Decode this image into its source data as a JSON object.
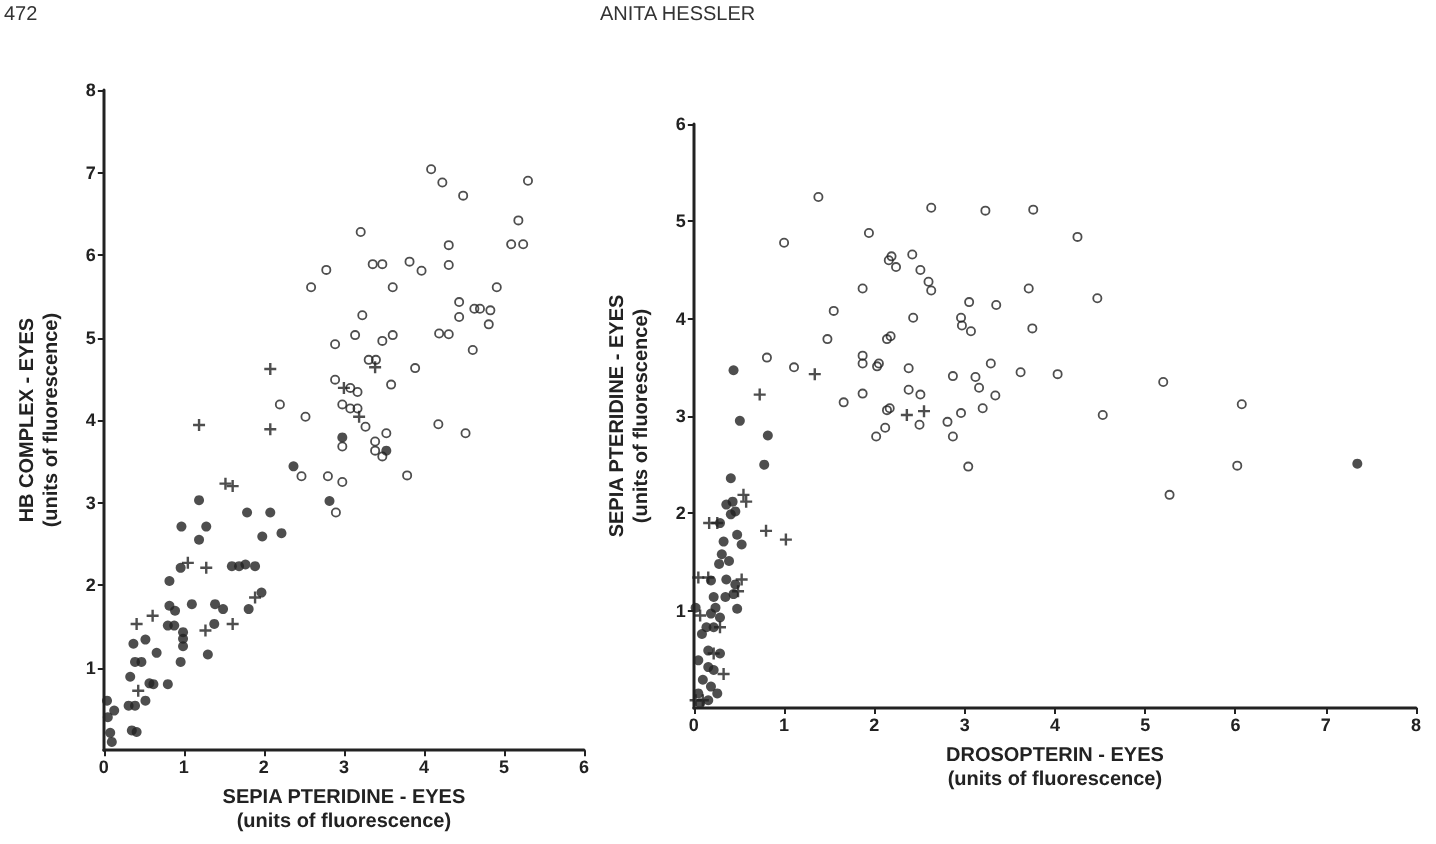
{
  "chart_data": [
    {
      "type": "scatter",
      "xlabel": "SEPIA PTERIDINE - EYES\n(units of fluorescence)",
      "ylabel": "HB COMPLEX - EYES\n(units of fluorescence)",
      "annotations": [
        "472",
        "ANITA HESSLER"
      ],
      "xlim": [
        0,
        6
      ],
      "ylim": [
        0,
        8
      ],
      "xticks": [
        0,
        1,
        2,
        3,
        4,
        5,
        6
      ],
      "yticks": [
        1,
        2,
        3,
        4,
        5,
        6,
        7,
        8
      ],
      "grid": false,
      "series": [
        {
          "color": "#222222",
          "marker": "circle",
          "x": [
            0.04,
            0.05,
            0.13,
            0.08,
            0.1,
            0.35,
            0.41,
            0.33,
            0.39,
            0.31,
            0.39,
            0.37,
            0.47,
            0.52,
            0.52,
            0.57,
            0.62,
            0.66,
            0.8,
            0.8,
            0.82,
            0.82,
            0.88,
            0.89,
            0.96,
            0.96,
            0.97,
            0.99,
            0.99,
            0.99,
            1.1,
            1.19,
            1.19,
            1.28,
            1.3,
            1.38,
            1.39,
            1.49,
            1.6,
            1.69,
            1.77,
            1.79,
            1.81,
            1.89,
            1.97,
            1.98,
            2.08,
            2.22,
            2.37,
            2.98,
            3.53,
            2.82
          ],
          "values": [
            0.6,
            0.4,
            0.48,
            0.21,
            0.1,
            0.24,
            0.22,
            0.89,
            1.07,
            0.54,
            0.54,
            1.29,
            1.07,
            1.34,
            0.6,
            0.81,
            0.8,
            1.18,
            0.8,
            1.51,
            2.05,
            1.75,
            1.51,
            1.69,
            2.21,
            1.07,
            2.71,
            1.43,
            1.26,
            1.35,
            1.77,
            2.55,
            3.03,
            2.71,
            1.16,
            1.53,
            1.77,
            1.71,
            2.23,
            2.23,
            2.25,
            2.88,
            1.71,
            2.23,
            1.91,
            2.59,
            2.88,
            2.63,
            3.44,
            3.79,
            3.63,
            3.02
          ]
        },
        {
          "color": "#222222",
          "marker": "cross",
          "x": [
            0.41,
            0.43,
            0.61,
            1.05,
            1.19,
            1.28,
            1.27,
            1.52,
            1.61,
            1.61,
            1.89,
            2.08,
            2.08,
            3.39,
            3.0,
            3.19
          ],
          "values": [
            1.53,
            0.72,
            1.63,
            2.27,
            3.94,
            2.21,
            1.45,
            3.23,
            3.2,
            1.53,
            1.85,
            4.62,
            3.89,
            4.64,
            4.39,
            4.04
          ]
        },
        {
          "color": "#222222",
          "marker": "circle-open",
          "x": [
            2.59,
            2.2,
            2.52,
            2.47,
            4.09,
            4.23,
            4.49,
            5.3,
            3.21,
            4.31,
            5.18,
            5.09,
            5.24,
            2.78,
            3.36,
            3.48,
            3.82,
            3.97,
            4.31,
            3.61,
            4.91,
            4.44,
            4.63,
            4.7,
            4.83,
            4.44,
            4.81,
            3.23,
            3.14,
            3.61,
            3.48,
            4.19,
            4.31,
            2.89,
            3.31,
            3.4,
            3.89,
            4.61,
            2.89,
            3.08,
            3.17,
            3.59,
            2.98,
            3.08,
            3.17,
            3.27,
            3.53,
            2.98,
            3.39,
            3.39,
            3.48,
            4.18,
            4.52,
            2.8,
            2.98,
            3.79,
            2.9
          ],
          "values": [
            5.61,
            4.19,
            4.04,
            3.32,
            7.04,
            6.88,
            6.72,
            6.9,
            6.28,
            6.12,
            6.42,
            6.13,
            6.13,
            5.82,
            5.89,
            5.89,
            5.92,
            5.81,
            5.88,
            5.61,
            5.61,
            5.43,
            5.35,
            5.35,
            5.33,
            5.25,
            5.16,
            5.27,
            5.03,
            5.03,
            4.96,
            5.05,
            5.04,
            4.92,
            4.73,
            4.73,
            4.63,
            4.85,
            4.49,
            4.39,
            4.34,
            4.43,
            4.19,
            4.14,
            4.14,
            3.92,
            3.84,
            3.68,
            3.74,
            3.63,
            3.56,
            3.95,
            3.84,
            3.32,
            3.25,
            3.33,
            2.88
          ]
        }
      ]
    },
    {
      "type": "scatter",
      "xlabel": "DROSOPTERIN - EYES\n(units of fluorescence)",
      "ylabel": "SEPIA PTERIDINE - EYES\n(units of fluorescence)",
      "xlim": [
        0,
        8
      ],
      "ylim": [
        0,
        6
      ],
      "xticks": [
        0,
        1,
        2,
        3,
        4,
        5,
        6,
        7,
        8
      ],
      "yticks": [
        1,
        2,
        3,
        4,
        5,
        6
      ],
      "grid": false,
      "series": [
        {
          "color": "#222222",
          "marker": "circle",
          "x": [
            0.44,
            0.51,
            0.82,
            0.78,
            0.41,
            0.36,
            0.43,
            0.41,
            0.46,
            0.29,
            0.33,
            0.48,
            0.53,
            0.31,
            0.39,
            0.28,
            0.36,
            0.46,
            0.19,
            0.22,
            0.35,
            0.44,
            0.24,
            0.19,
            0.29,
            0.14,
            0.22,
            0.09,
            0.16,
            0.29,
            0.05,
            0.16,
            0.22,
            0.1,
            0.19,
            0.05,
            0.16,
            0.07,
            0.26,
            0.48,
            0.02,
            7.35
          ],
          "values": [
            3.47,
            2.95,
            2.8,
            2.5,
            2.36,
            2.09,
            2.12,
            1.99,
            2.02,
            1.9,
            1.71,
            1.78,
            1.68,
            1.58,
            1.51,
            1.48,
            1.32,
            1.27,
            1.31,
            1.14,
            1.14,
            1.17,
            1.03,
            0.97,
            0.93,
            0.83,
            0.83,
            0.76,
            0.59,
            0.56,
            0.49,
            0.42,
            0.39,
            0.29,
            0.22,
            0.15,
            0.08,
            0.05,
            0.15,
            1.02,
            1.03,
            2.51
          ]
        },
        {
          "color": "#222222",
          "marker": "cross",
          "x": [
            0.73,
            1.34,
            0.58,
            0.55,
            0.8,
            1.02,
            0.17,
            0.26,
            0.05,
            0.16,
            0.53,
            0.49,
            0.29,
            0.07,
            0.22,
            0.33,
            0.1,
            0.02,
            2.36,
            2.55
          ],
          "values": [
            3.22,
            3.43,
            2.12,
            2.19,
            1.82,
            1.73,
            1.9,
            1.9,
            1.34,
            1.34,
            1.32,
            1.2,
            0.83,
            0.95,
            0.56,
            0.35,
            0.08,
            0.08,
            3.01,
            3.05
          ]
        },
        {
          "color": "#222222",
          "marker": "circle-open",
          "x": [
            1.38,
            1.0,
            1.94,
            1.55,
            1.87,
            1.48,
            0.81,
            1.11,
            1.87,
            1.87,
            2.03,
            1.66,
            1.87,
            2.02,
            2.12,
            2.14,
            2.16,
            2.14,
            2.63,
            3.23,
            3.76,
            4.25,
            2.19,
            2.42,
            2.24,
            2.51,
            2.6,
            2.63,
            3.71,
            4.47,
            3.05,
            3.35,
            2.43,
            2.96,
            2.97,
            3.07,
            3.75,
            2.18,
            2.05,
            2.38,
            3.29,
            2.87,
            3.12,
            3.62,
            4.03,
            5.2,
            2.38,
            2.51,
            3.16,
            3.34,
            2.17,
            3.2,
            2.96,
            6.07,
            4.53,
            2.5,
            2.81,
            2.87,
            3.04,
            6.02,
            5.27
          ],
          "values": [
            5.25,
            4.78,
            4.88,
            4.08,
            4.31,
            3.79,
            3.6,
            3.5,
            3.62,
            3.54,
            3.51,
            3.14,
            3.23,
            2.79,
            2.88,
            3.06,
            4.6,
            3.79,
            5.14,
            5.11,
            5.12,
            4.84,
            4.64,
            4.66,
            4.53,
            4.5,
            4.38,
            4.29,
            4.31,
            4.21,
            4.17,
            4.14,
            4.01,
            4.01,
            3.93,
            3.87,
            3.9,
            3.82,
            3.54,
            3.49,
            3.54,
            3.41,
            3.4,
            3.45,
            3.43,
            3.35,
            3.27,
            3.22,
            3.29,
            3.21,
            3.08,
            3.08,
            3.03,
            3.12,
            3.01,
            2.91,
            2.94,
            2.79,
            2.48,
            2.49,
            2.19
          ]
        }
      ]
    }
  ]
}
